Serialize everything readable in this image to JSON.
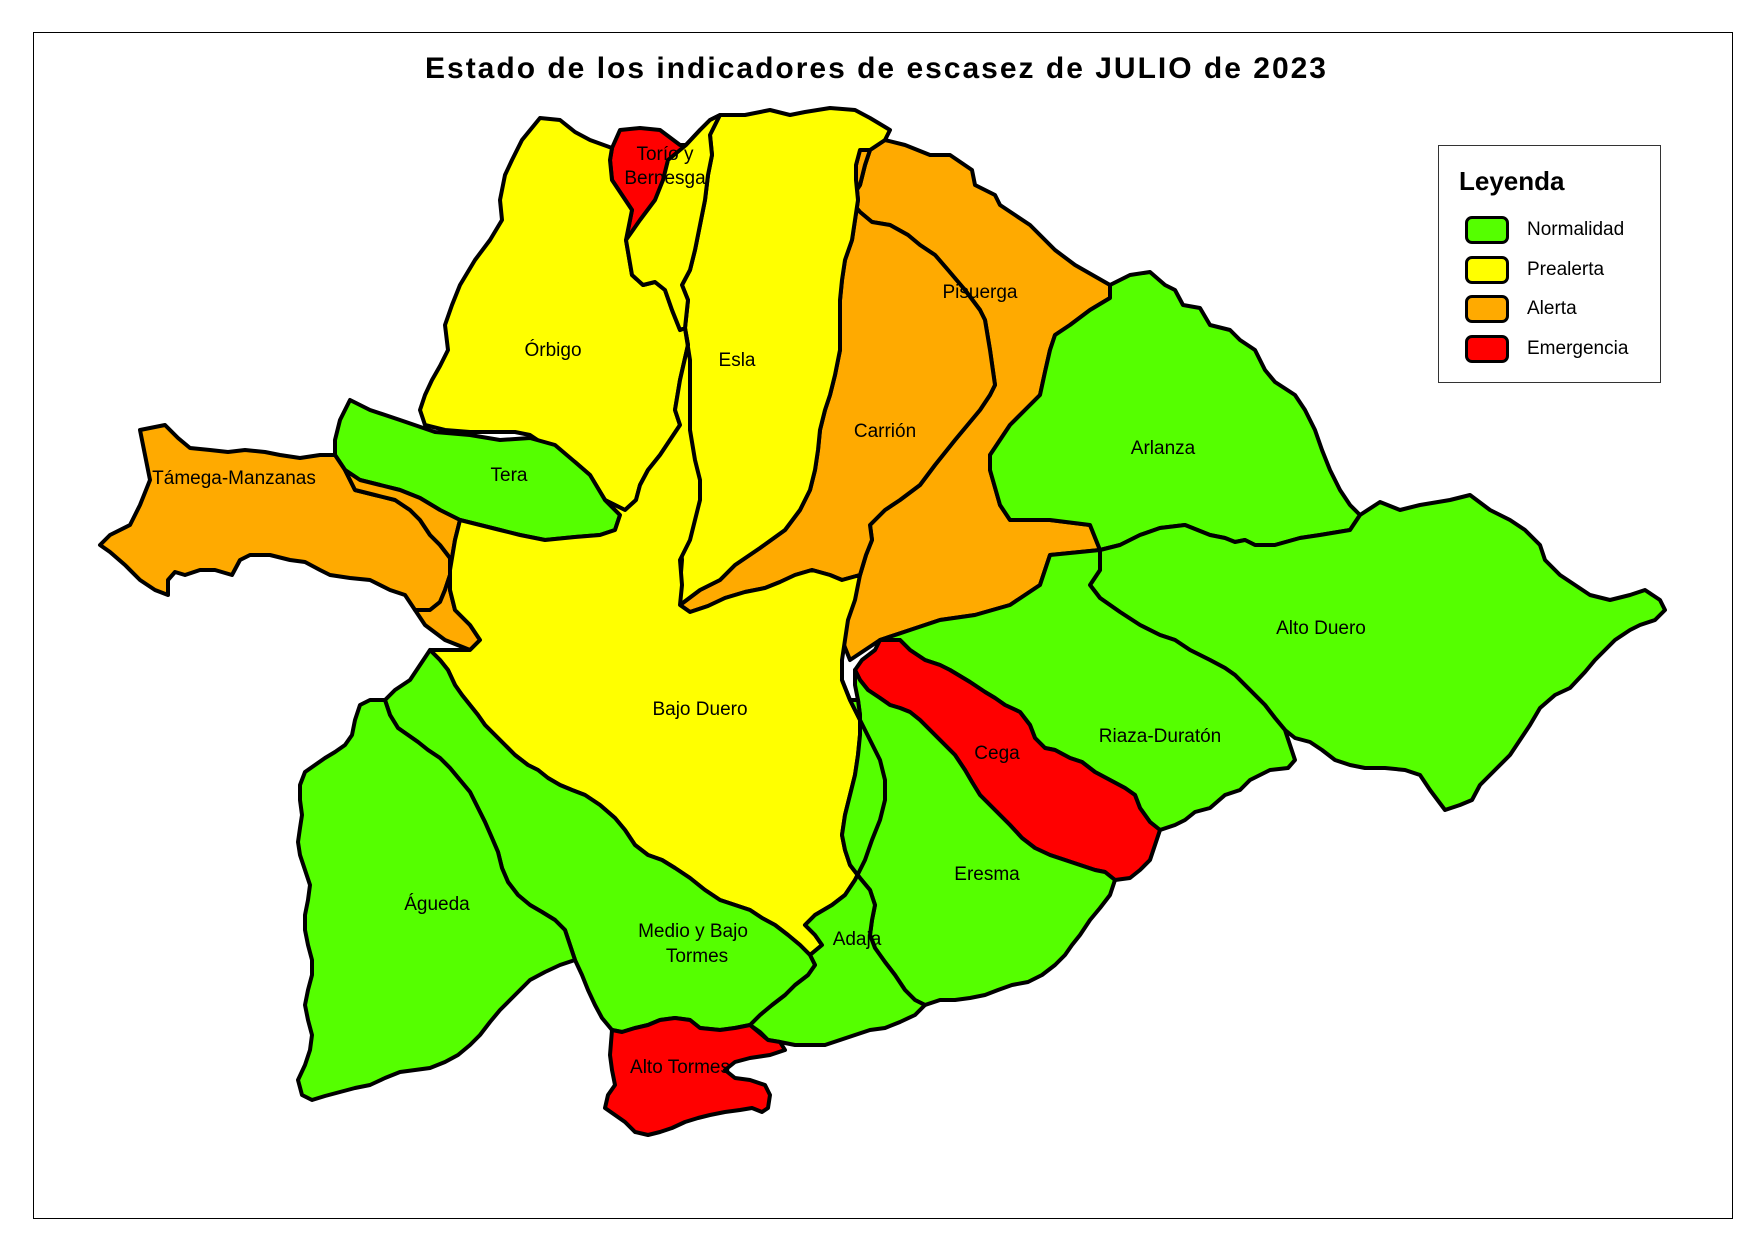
{
  "title": "Estado de los indicadores de escasez de JULIO de 2023",
  "legend": {
    "title": "Leyenda",
    "items": [
      {
        "key": "normalidad",
        "label": "Normalidad",
        "color": "#55ff00"
      },
      {
        "key": "prealerta",
        "label": "Prealerta",
        "color": "#ffff00"
      },
      {
        "key": "alerta",
        "label": "Alerta",
        "color": "#ffaa00"
      },
      {
        "key": "emergencia",
        "label": "Emergencia",
        "color": "#ff0000"
      }
    ]
  },
  "basins": [
    {
      "name": "Órbigo",
      "status": "prealerta"
    },
    {
      "name": "Torío y Bernesga",
      "status": "emergencia"
    },
    {
      "name": "Esla",
      "status": "prealerta"
    },
    {
      "name": "Pisuerga",
      "status": "alerta"
    },
    {
      "name": "Carrión",
      "status": "alerta"
    },
    {
      "name": "Arlanza",
      "status": "normalidad"
    },
    {
      "name": "Támega-Manzanas",
      "status": "alerta"
    },
    {
      "name": "Tera",
      "status": "normalidad"
    },
    {
      "name": "Alto Duero",
      "status": "normalidad"
    },
    {
      "name": "Bajo Duero",
      "status": "prealerta"
    },
    {
      "name": "Riaza-Duratón",
      "status": "normalidad"
    },
    {
      "name": "Cega",
      "status": "emergencia"
    },
    {
      "name": "Eresma",
      "status": "normalidad"
    },
    {
      "name": "Adaja",
      "status": "normalidad"
    },
    {
      "name": "Águeda",
      "status": "normalidad"
    },
    {
      "name": "Medio y Bajo Tormes",
      "status": "normalidad"
    },
    {
      "name": "Alto Tormes",
      "status": "emergencia"
    }
  ]
}
